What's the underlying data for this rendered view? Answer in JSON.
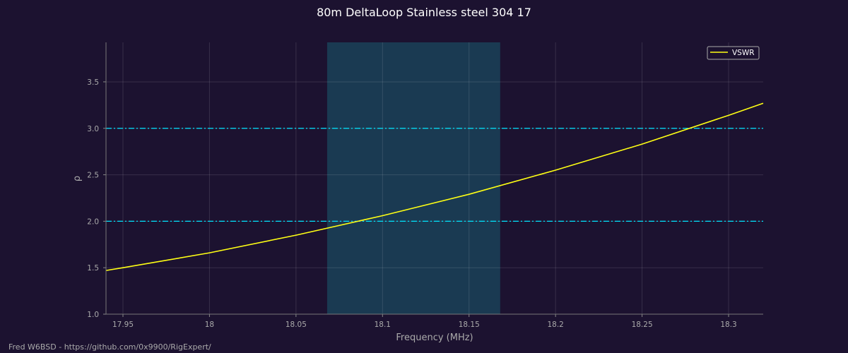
{
  "chart_data": {
    "type": "line",
    "title": "80m DeltaLoop Stainless steel 304 17",
    "xlabel": "Frequency (MHz)",
    "ylabel": "ρ",
    "xlim": [
      17.9402,
      18.32
    ],
    "ylim": [
      1.0,
      3.925
    ],
    "xticks": [
      17.95,
      18.0,
      18.05,
      18.1,
      18.15,
      18.2,
      18.25,
      18.3
    ],
    "xtick_labels": [
      "17.95",
      "18",
      "18.05",
      "18.1",
      "18.15",
      "18.2",
      "18.25",
      "18.3"
    ],
    "yticks": [
      1.0,
      1.5,
      2.0,
      2.5,
      3.0,
      3.5
    ],
    "ytick_labels": [
      "1.0",
      "1.5",
      "2.0",
      "2.5",
      "3.0",
      "3.5"
    ],
    "grid": true,
    "legend": {
      "position": "top-right",
      "entries": [
        "VSWR"
      ]
    },
    "series": [
      {
        "name": "VSWR",
        "color": "#ffff14",
        "x": [
          17.9402,
          17.95,
          18.0,
          18.05,
          18.1,
          18.15,
          18.2,
          18.25,
          18.3,
          18.32
        ],
        "y": [
          1.47,
          1.5,
          1.66,
          1.85,
          2.06,
          2.29,
          2.55,
          2.83,
          3.14,
          3.27
        ]
      }
    ],
    "hlines": [
      {
        "y": 3.0,
        "color": "#00e5ff",
        "style": "dashdot"
      },
      {
        "y": 2.0,
        "color": "#00e5ff",
        "style": "dashdot"
      }
    ],
    "band": {
      "x": [
        18.068,
        18.168
      ],
      "color": "#1a3a52"
    }
  },
  "footer": "Fred W6BSD - https://github.com/0x9900/RigExpert/"
}
